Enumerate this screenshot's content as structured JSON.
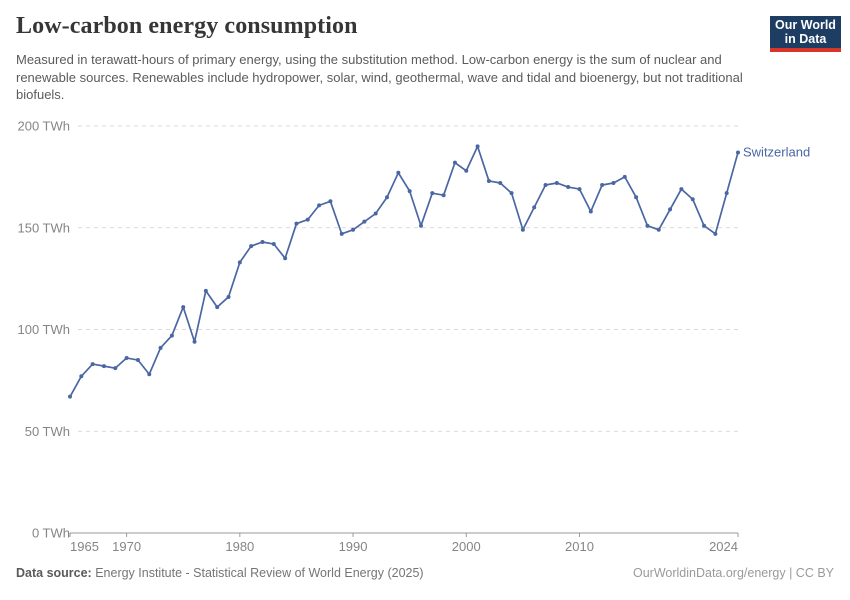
{
  "header": {
    "title": "Low-carbon energy consumption",
    "subtitle": "Measured in terawatt-hours of primary energy, using the substitution method. Low-carbon energy is the sum of nuclear and renewable sources. Renewables include hydropower, solar, wind, geothermal, wave and tidal and bioenergy, but not traditional biofuels.",
    "logo": {
      "line1": "Our World",
      "line2": "in Data",
      "bg_color": "#1d3d63",
      "accent_color": "#d8352a"
    }
  },
  "chart_data": {
    "type": "line",
    "title": "Low-carbon energy consumption",
    "unit": "TWh",
    "xlabel": "",
    "ylabel": "TWh",
    "ylim": [
      0,
      200
    ],
    "yticks": [
      0,
      50,
      100,
      150,
      200
    ],
    "ytick_suffix": " TWh",
    "xticks": [
      1965,
      1970,
      1980,
      1990,
      2000,
      2010,
      2024
    ],
    "grid": "horizontal-dashed",
    "legend": "end-of-line-label",
    "end_label": "Switzerland",
    "x": [
      1965,
      1966,
      1967,
      1968,
      1969,
      1970,
      1971,
      1972,
      1973,
      1974,
      1975,
      1976,
      1977,
      1978,
      1979,
      1980,
      1981,
      1982,
      1983,
      1984,
      1985,
      1986,
      1987,
      1988,
      1989,
      1990,
      1991,
      1992,
      1993,
      1994,
      1995,
      1996,
      1997,
      1998,
      1999,
      2000,
      2001,
      2002,
      2003,
      2004,
      2005,
      2006,
      2007,
      2008,
      2009,
      2010,
      2011,
      2012,
      2013,
      2014,
      2015,
      2016,
      2017,
      2018,
      2019,
      2020,
      2021,
      2022,
      2023,
      2024
    ],
    "series": [
      {
        "name": "Switzerland",
        "color": "#4a67a3",
        "values": [
          67,
          77,
          83,
          82,
          81,
          86,
          85,
          78,
          91,
          97,
          111,
          94,
          119,
          111,
          116,
          133,
          141,
          143,
          142,
          135,
          152,
          154,
          161,
          163,
          147,
          149,
          153,
          157,
          165,
          177,
          168,
          151,
          167,
          166,
          182,
          178,
          190,
          173,
          172,
          167,
          149,
          160,
          171,
          172,
          170,
          169,
          158,
          171,
          172,
          175,
          165,
          151,
          149,
          159,
          169,
          164,
          151,
          147,
          167,
          187
        ]
      }
    ]
  },
  "footer": {
    "datasource_label": "Data source:",
    "datasource_value": "Energy Institute - Statistical Review of World Energy (2025)",
    "rights": "OurWorldinData.org/energy | CC BY"
  }
}
